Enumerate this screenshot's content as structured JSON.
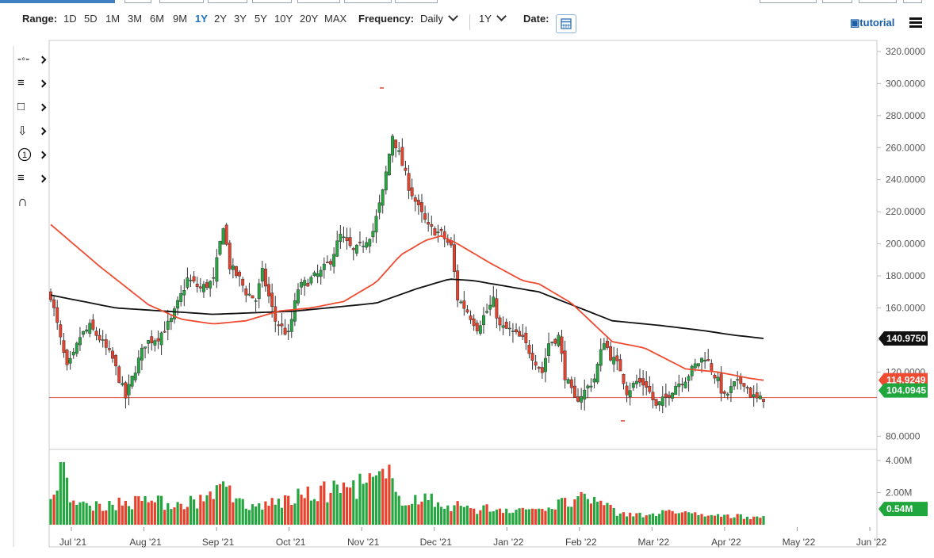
{
  "toolbar": {
    "range_label": "Range:",
    "ranges": [
      "1D",
      "5D",
      "1M",
      "3M",
      "6M",
      "9M",
      "1Y",
      "2Y",
      "3Y",
      "5Y",
      "10Y",
      "20Y",
      "MAX"
    ],
    "active_range": "1Y",
    "frequency_label": "Frequency:",
    "frequency_value": "Daily",
    "period_value": "1Y",
    "date_label": "Date:",
    "tutorial_label": "tutorial"
  },
  "tools": [
    "line-tool-icon",
    "fibonacci-icon",
    "rectangle-icon",
    "arrow-down-icon",
    "circle-number-icon",
    "measure-icon",
    "magnet-icon"
  ],
  "tool_number": "1",
  "colors": {
    "up": "#26a641",
    "down": "#e8412c",
    "ma_fast": "#ef4b31",
    "ma_slow": "#111111",
    "current_line": "#e05252",
    "accent": "#1a73c9"
  },
  "chart_data": {
    "type": "candlestick",
    "price_axis": {
      "ticks": [
        "320.0000",
        "300.0000",
        "280.0000",
        "260.0000",
        "240.0000",
        "220.0000",
        "200.0000",
        "180.0000",
        "160.0000",
        "140.0000",
        "120.0000",
        "80.0000"
      ],
      "range": [
        74,
        324
      ]
    },
    "volume_axis": {
      "ticks": [
        "4.00M",
        "2.00M"
      ],
      "range": [
        0,
        4.3
      ]
    },
    "x_labels": [
      "Jul '21",
      "Aug '21",
      "Sep '21",
      "Oct '21",
      "Nov '21",
      "Dec '21",
      "Jan '22",
      "Feb '22",
      "Mar '22",
      "Apr '22",
      "May '22",
      "Jun '22"
    ],
    "tags": {
      "ma_slow_last": "140.9750",
      "ma_fast_last": "114.9249",
      "last_price": "104.0945",
      "last_volume": "0.54M"
    },
    "series_points": {
      "price_close": [
        [
          0,
          168
        ],
        [
          6,
          140
        ],
        [
          10,
          122
        ],
        [
          14,
          130
        ],
        [
          18,
          142
        ],
        [
          24,
          148
        ],
        [
          30,
          141
        ],
        [
          38,
          128
        ],
        [
          46,
          104
        ],
        [
          52,
          122
        ],
        [
          58,
          138
        ],
        [
          66,
          142
        ],
        [
          74,
          152
        ],
        [
          84,
          178
        ],
        [
          92,
          172
        ],
        [
          100,
          177
        ],
        [
          106,
          212
        ],
        [
          110,
          186
        ],
        [
          116,
          178
        ],
        [
          120,
          170
        ],
        [
          126,
          165
        ],
        [
          130,
          182
        ],
        [
          138,
          152
        ],
        [
          146,
          143
        ],
        [
          152,
          172
        ],
        [
          160,
          178
        ],
        [
          166,
          182
        ],
        [
          172,
          190
        ],
        [
          178,
          205
        ],
        [
          186,
          195
        ],
        [
          190,
          198
        ],
        [
          198,
          208
        ],
        [
          204,
          232
        ],
        [
          210,
          268
        ],
        [
          214,
          256
        ],
        [
          220,
          236
        ],
        [
          226,
          222
        ],
        [
          232,
          210
        ],
        [
          236,
          208
        ],
        [
          240,
          206
        ],
        [
          246,
          198
        ],
        [
          250,
          166
        ],
        [
          256,
          158
        ],
        [
          262,
          148
        ],
        [
          268,
          158
        ],
        [
          272,
          164
        ],
        [
          276,
          148
        ],
        [
          282,
          146
        ],
        [
          290,
          140
        ],
        [
          296,
          130
        ],
        [
          302,
          120
        ],
        [
          306,
          138
        ],
        [
          312,
          142
        ],
        [
          316,
          118
        ],
        [
          322,
          102
        ],
        [
          328,
          108
        ],
        [
          334,
          116
        ],
        [
          340,
          140
        ],
        [
          344,
          130
        ],
        [
          350,
          122
        ],
        [
          354,
          108
        ],
        [
          360,
          114
        ],
        [
          366,
          112
        ],
        [
          372,
          98
        ],
        [
          378,
          104
        ],
        [
          384,
          112
        ],
        [
          390,
          116
        ],
        [
          396,
          124
        ],
        [
          402,
          130
        ],
        [
          406,
          122
        ],
        [
          410,
          114
        ],
        [
          414,
          104
        ],
        [
          420,
          112
        ],
        [
          426,
          114
        ],
        [
          430,
          106
        ],
        [
          435,
          102
        ],
        [
          438,
          104.09
        ]
      ],
      "volume": [
        [
          0,
          1.6
        ],
        [
          6,
          3.9
        ],
        [
          12,
          1.4
        ],
        [
          30,
          1.3
        ],
        [
          60,
          1.4
        ],
        [
          80,
          1.3
        ],
        [
          100,
          1.6
        ],
        [
          106,
          2.7
        ],
        [
          120,
          1.0
        ],
        [
          210,
          2.9
        ],
        [
          214,
          1.8
        ],
        [
          260,
          1.0
        ],
        [
          300,
          1.0
        ],
        [
          330,
          1.6
        ],
        [
          350,
          0.7
        ],
        [
          384,
          0.7
        ],
        [
          412,
          0.5
        ],
        [
          438,
          0.54
        ]
      ],
      "ma_fast": [
        [
          0,
          212
        ],
        [
          30,
          186
        ],
        [
          60,
          162
        ],
        [
          80,
          153
        ],
        [
          100,
          150
        ],
        [
          120,
          152
        ],
        [
          140,
          158
        ],
        [
          160,
          160
        ],
        [
          180,
          164
        ],
        [
          200,
          176
        ],
        [
          215,
          193
        ],
        [
          230,
          202
        ],
        [
          240,
          205
        ],
        [
          250,
          200
        ],
        [
          270,
          188
        ],
        [
          290,
          177
        ],
        [
          300,
          175
        ],
        [
          320,
          163
        ],
        [
          345,
          139
        ],
        [
          365,
          135
        ],
        [
          390,
          122
        ],
        [
          410,
          120
        ],
        [
          430,
          116
        ],
        [
          438,
          114.92
        ]
      ],
      "ma_slow": [
        [
          0,
          168
        ],
        [
          40,
          160
        ],
        [
          100,
          156
        ],
        [
          150,
          158
        ],
        [
          200,
          163
        ],
        [
          225,
          172
        ],
        [
          245,
          178
        ],
        [
          260,
          177
        ],
        [
          300,
          170
        ],
        [
          320,
          162
        ],
        [
          345,
          152
        ],
        [
          375,
          149
        ],
        [
          400,
          146
        ],
        [
          420,
          143
        ],
        [
          438,
          140.98
        ]
      ]
    },
    "reference_line": 104.09,
    "annotation_marks": [
      "peak-marker",
      "trough-marker"
    ]
  }
}
